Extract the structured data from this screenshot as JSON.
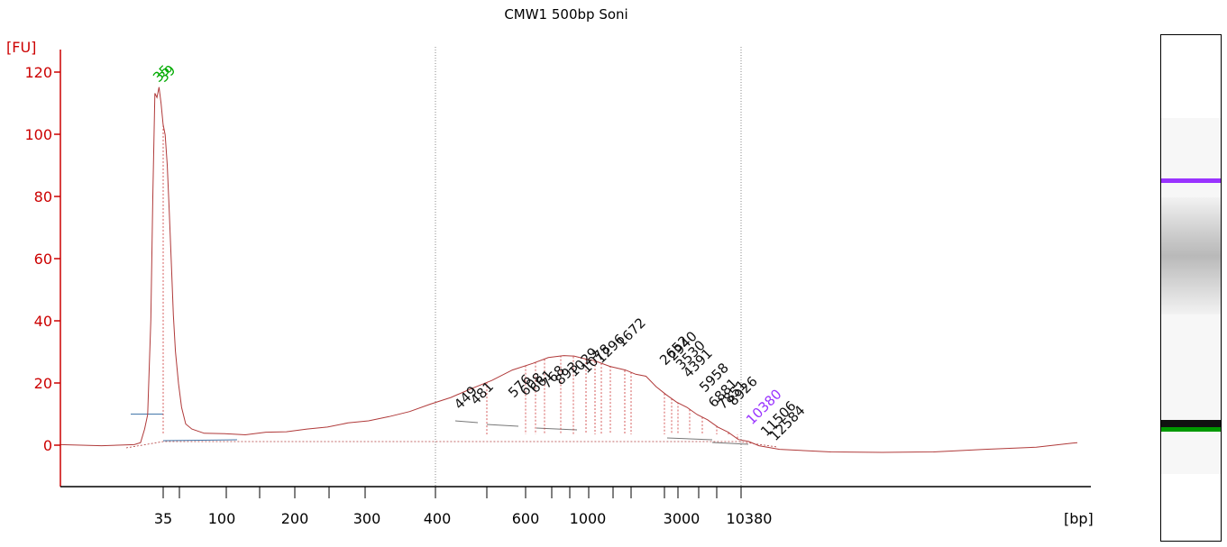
{
  "chart_data": {
    "type": "line",
    "title": "CMW1 500bp Soni",
    "ylabel": "[FU]",
    "xlabel": "[bp]",
    "ylim": [
      -13,
      128
    ],
    "y_ticks": [
      "0",
      "20",
      "40",
      "60",
      "80",
      "100",
      "120"
    ],
    "x_ticks": [
      "35",
      "100",
      "200",
      "300",
      "400",
      "600",
      "1000",
      "3000",
      "10380"
    ],
    "colors": {
      "axis": "#cc0000",
      "trace": "#b03a3a",
      "upper_marker": "#9933ff",
      "lower_marker": "#00aa00",
      "baseline": "#4477aa"
    },
    "lower_marker_peaks": [
      "35",
      "39"
    ],
    "upper_marker_peak": "10380",
    "peak_labels": [
      "449",
      "481",
      "576",
      "608",
      "661",
      "768",
      "893",
      "1029",
      "1078",
      "1296",
      "1672",
      "2652",
      "2940",
      "3530",
      "4391",
      "5958",
      "6881",
      "7851",
      "8926",
      "11506",
      "12584"
    ],
    "series": [
      {
        "x_scale": "migration",
        "points": [
          [
            0,
            0
          ],
          [
            40,
            0
          ],
          [
            72,
            0
          ],
          [
            78,
            1
          ],
          [
            82,
            5
          ],
          [
            85,
            10
          ],
          [
            88,
            40
          ],
          [
            90,
            80
          ],
          [
            92,
            113
          ],
          [
            94,
            112
          ],
          [
            96,
            115
          ],
          [
            98,
            110
          ],
          [
            100,
            103
          ],
          [
            102,
            100
          ],
          [
            104,
            90
          ],
          [
            106,
            75
          ],
          [
            108,
            58
          ],
          [
            110,
            42
          ],
          [
            112,
            30
          ],
          [
            115,
            20
          ],
          [
            118,
            12
          ],
          [
            122,
            7
          ],
          [
            128,
            5
          ],
          [
            140,
            4
          ],
          [
            160,
            3.5
          ],
          [
            180,
            3.5
          ],
          [
            200,
            4
          ],
          [
            220,
            4.5
          ],
          [
            240,
            5
          ],
          [
            260,
            6
          ],
          [
            280,
            7
          ],
          [
            300,
            8
          ],
          [
            320,
            9
          ],
          [
            340,
            11
          ],
          [
            360,
            13
          ],
          [
            380,
            15.5
          ],
          [
            400,
            18
          ],
          [
            420,
            21
          ],
          [
            440,
            24
          ],
          [
            460,
            26.5
          ],
          [
            475,
            28
          ],
          [
            490,
            29
          ],
          [
            500,
            28.5
          ],
          [
            510,
            28
          ],
          [
            520,
            27
          ],
          [
            535,
            25.5
          ],
          [
            550,
            24
          ],
          [
            560,
            23
          ],
          [
            570,
            22
          ],
          [
            580,
            19
          ],
          [
            590,
            16
          ],
          [
            600,
            14
          ],
          [
            610,
            12
          ],
          [
            620,
            10
          ],
          [
            630,
            8
          ],
          [
            640,
            6
          ],
          [
            650,
            4
          ],
          [
            660,
            2
          ],
          [
            670,
            1
          ],
          [
            680,
            0
          ],
          [
            700,
            -1.5
          ],
          [
            750,
            -2
          ],
          [
            800,
            -2.5
          ],
          [
            850,
            -2
          ],
          [
            900,
            -1.5
          ],
          [
            950,
            -0.5
          ],
          [
            985,
            0.5
          ],
          [
            990,
            1
          ]
        ]
      }
    ]
  }
}
